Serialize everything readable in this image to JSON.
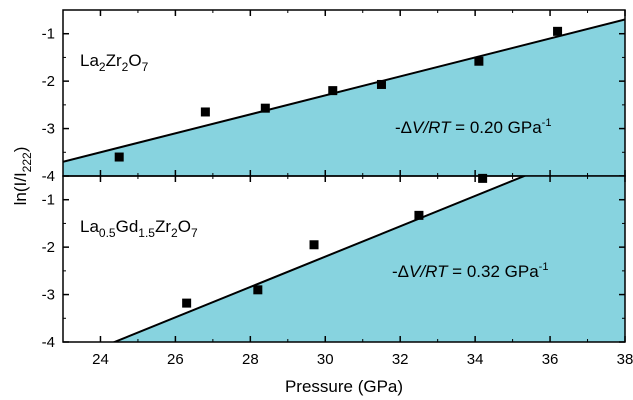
{
  "chart_data": {
    "type": "scatter",
    "xlabel": "Pressure (GPa)",
    "ylabel": {
      "main": "ln(I/I",
      "sub": "222",
      "close": ")"
    },
    "xlim": [
      23,
      38
    ],
    "x_ticks": [
      24,
      26,
      28,
      30,
      32,
      34,
      36,
      38
    ],
    "fill_color": "#87d3df",
    "panels": [
      {
        "id": "top",
        "sample_label": [
          {
            "t": "La",
            "s": "normal"
          },
          {
            "t": "2",
            "s": "sub"
          },
          {
            "t": "Zr",
            "s": "normal"
          },
          {
            "t": "2",
            "s": "sub"
          },
          {
            "t": "O",
            "s": "normal"
          },
          {
            "t": "7",
            "s": "sub"
          }
        ],
        "annotation": {
          "prefix": "-",
          "delta": "Δ",
          "var": "V/RT",
          "middle": " = 0.20 GPa",
          "sup": "-1"
        },
        "ylim": [
          -4,
          -0.5
        ],
        "y_ticks": [
          -4,
          -3,
          -2,
          -1
        ],
        "points": [
          {
            "x": 24.5,
            "y": -3.6
          },
          {
            "x": 26.8,
            "y": -2.65
          },
          {
            "x": 28.4,
            "y": -2.57
          },
          {
            "x": 30.2,
            "y": -2.2
          },
          {
            "x": 31.5,
            "y": -2.07
          },
          {
            "x": 34.1,
            "y": -1.58
          },
          {
            "x": 36.2,
            "y": -0.95
          }
        ],
        "fit": {
          "slope": 0.2,
          "intercept": -8.3
        }
      },
      {
        "id": "bottom",
        "sample_label": [
          {
            "t": "La",
            "s": "normal"
          },
          {
            "t": "0.5",
            "s": "sub"
          },
          {
            "t": "Gd",
            "s": "normal"
          },
          {
            "t": "1.5",
            "s": "sub"
          },
          {
            "t": "Zr",
            "s": "normal"
          },
          {
            "t": "2",
            "s": "sub"
          },
          {
            "t": "O",
            "s": "normal"
          },
          {
            "t": "7",
            "s": "sub"
          }
        ],
        "annotation": {
          "prefix": "-",
          "delta": "Δ",
          "var": "V/RT",
          "middle": " = 0.32 GPa",
          "sup": "-1"
        },
        "ylim": [
          -4,
          -0.5
        ],
        "y_ticks": [
          -4,
          -3,
          -2,
          -1
        ],
        "points": [
          {
            "x": 26.3,
            "y": -3.18
          },
          {
            "x": 28.2,
            "y": -2.9
          },
          {
            "x": 29.7,
            "y": -1.95
          },
          {
            "x": 32.5,
            "y": -1.33
          },
          {
            "x": 34.2,
            "y": -0.55
          }
        ],
        "fit": {
          "slope": 0.32,
          "intercept": -11.8
        }
      }
    ]
  }
}
